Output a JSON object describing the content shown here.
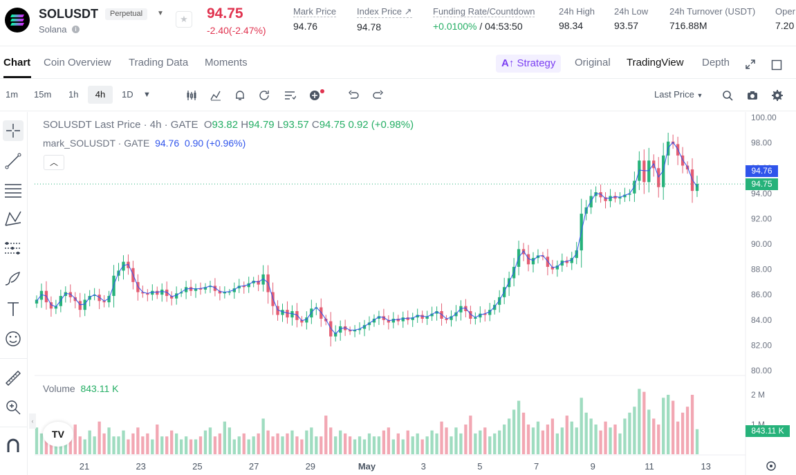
{
  "ticker": {
    "symbol": "SOLUSDT",
    "contract_type": "Perpetual",
    "coin_name": "Solana",
    "last_price": "94.75",
    "change": "-2.40(-2.47%)",
    "mark_price_label": "Mark Price",
    "mark_price": "94.76",
    "index_price_label": "Index Price ↗",
    "index_price": "94.78",
    "funding_label": "Funding Rate/Countdown",
    "funding_rate": "+0.0100%",
    "funding_countdown": "/ 04:53:50",
    "high_label": "24h High",
    "high": "98.34",
    "low_label": "24h Low",
    "low": "93.57",
    "turnover_label": "24h Turnover (USDT)",
    "turnover": "716.88M",
    "open_label": "Oper",
    "open_value": "7.20"
  },
  "tabs": [
    "Chart",
    "Coin Overview",
    "Trading Data",
    "Moments"
  ],
  "view_tabs": {
    "strategy": "Strategy",
    "original": "Original",
    "tradingview": "TradingView",
    "depth": "Depth"
  },
  "toolbar": {
    "timeframes": [
      "1m",
      "15m",
      "1h",
      "4h",
      "1D"
    ],
    "active_timeframe": "4h",
    "price_type": "Last Price"
  },
  "legend": {
    "title": "SOLUSDT Last Price · 4h · GATE",
    "open_label": "O",
    "open": "93.82",
    "high_label": "H",
    "high": "94.79",
    "low_label": "L",
    "low": "93.57",
    "close_label": "C",
    "close": "94.75",
    "change": "0.92 (+0.98%)",
    "mark_title": "mark_SOLUSDT · GATE",
    "mark_value": "94.76",
    "mark_change": "0.90 (+0.96%)"
  },
  "volume_legend": {
    "label": "Volume",
    "value": "843.11 K"
  },
  "colors": {
    "up": "#26b27a",
    "down": "#e35c72",
    "mark_tag": "#2f54eb",
    "brand_purple": "#7b3ff2"
  },
  "icons": [
    "close-icon",
    "star-icon",
    "expand-icon",
    "window-icon",
    "candles-icon",
    "indicator-icon",
    "alert-icon",
    "replay-icon",
    "template-icon",
    "add-icon",
    "undo-icon",
    "redo-icon",
    "search-icon",
    "camera-icon",
    "settings-icon",
    "crosshair-icon",
    "trendline-icon",
    "fib-icon",
    "pattern-icon",
    "forecast-icon",
    "brush-icon",
    "text-icon",
    "emoji-icon",
    "ruler-icon",
    "zoom-icon",
    "magnet-icon"
  ],
  "chart_data": {
    "type": "candlestick",
    "price_axis": [
      "100.00",
      "98.00",
      "96.00",
      "94.00",
      "92.00",
      "90.00",
      "88.00",
      "86.00",
      "84.00",
      "82.00",
      "80.00"
    ],
    "price_range": [
      80,
      100
    ],
    "volume_axis": [
      "2 M",
      "1 M"
    ],
    "x_labels": [
      "21",
      "23",
      "25",
      "27",
      "29",
      "May",
      "3",
      "5",
      "7",
      "9",
      "11",
      "13"
    ],
    "mark_price_tag": "94.76",
    "last_price_tag": "94.75",
    "volume_tag": "843.11 K",
    "close_series": [
      85.6,
      86.3,
      85.4,
      84.9,
      85.1,
      85.9,
      86.2,
      85.8,
      85.5,
      84.8,
      85.6,
      85.9,
      86.0,
      85.5,
      85.4,
      85.9,
      87.5,
      87.9,
      88.6,
      88.1,
      87.0,
      86.2,
      86.1,
      86.0,
      86.3,
      86.0,
      86.4,
      85.9,
      85.7,
      86.1,
      86.2,
      86.6,
      86.3,
      86.5,
      86.4,
      86.6,
      86.7,
      86.3,
      86.1,
      86.2,
      86.2,
      86.5,
      86.7,
      86.6,
      86.9,
      87.1,
      86.8,
      87.6,
      86.2,
      85.1,
      84.4,
      84.8,
      84.2,
      84.7,
      84.0,
      83.8,
      84.2,
      84.9,
      85.0,
      84.1,
      83.9,
      82.7,
      83.0,
      83.5,
      83.2,
      83.1,
      83.2,
      83.3,
      83.6,
      83.8,
      84.1,
      84.3,
      84.0,
      83.8,
      84.1,
      83.9,
      84.2,
      84.0,
      84.2,
      84.4,
      84.1,
      84.3,
      84.5,
      84.7,
      84.1,
      84.0,
      84.3,
      84.6,
      85.1,
      84.7,
      84.1,
      84.2,
      84.5,
      84.4,
      84.8,
      85.2,
      85.8,
      86.6,
      87.3,
      88.2,
      89.6,
      89.2,
      88.4,
      88.9,
      89.1,
      89.0,
      88.2,
      88.0,
      88.3,
      88.7,
      88.5,
      88.9,
      89.5,
      92.4,
      92.9,
      93.8,
      94.1,
      93.7,
      93.4,
      93.8,
      93.6,
      93.7,
      93.9,
      94.0,
      95.0,
      96.6,
      94.9,
      96.6,
      96.0,
      94.5,
      97.0,
      98.1,
      97.9,
      97.0,
      96.2,
      95.9,
      94.2,
      94.75
    ],
    "volume_series": [
      0.9,
      0.7,
      0.8,
      0.6,
      0.5,
      0.9,
      0.8,
      0.7,
      1.0,
      0.6,
      0.5,
      0.8,
      0.6,
      1.1,
      0.7,
      0.9,
      0.6,
      0.6,
      0.8,
      0.5,
      0.7,
      0.9,
      0.6,
      0.7,
      0.5,
      1.0,
      0.6,
      0.6,
      0.8,
      0.7,
      0.5,
      0.6,
      0.5,
      0.5,
      0.6,
      0.8,
      0.9,
      0.6,
      0.7,
      1.1,
      0.9,
      0.5,
      0.6,
      0.7,
      0.5,
      0.6,
      0.7,
      1.2,
      0.8,
      0.6,
      0.7,
      0.6,
      0.7,
      0.8,
      0.6,
      0.5,
      0.8,
      0.9,
      0.6,
      0.6,
      1.3,
      0.9,
      0.6,
      0.8,
      0.7,
      0.6,
      0.5,
      0.6,
      0.5,
      0.7,
      0.6,
      0.6,
      0.8,
      0.9,
      0.5,
      0.7,
      0.5,
      0.8,
      0.6,
      0.7,
      0.5,
      0.6,
      0.8,
      0.7,
      1.1,
      0.9,
      0.6,
      0.9,
      0.7,
      1.0,
      1.3,
      0.7,
      0.8,
      0.9,
      0.6,
      0.7,
      0.8,
      1.0,
      1.2,
      1.5,
      1.8,
      1.4,
      1.0,
      0.9,
      1.1,
      0.8,
      1.0,
      1.2,
      0.7,
      0.9,
      1.3,
      1.1,
      0.9,
      1.9,
      1.4,
      1.2,
      1.0,
      0.8,
      1.1,
      0.9,
      1.0,
      0.7,
      1.2,
      1.4,
      1.6,
      2.2,
      2.1,
      1.5,
      1.2,
      1.0,
      1.9,
      2.0,
      1.8,
      1.1,
      1.4,
      1.6,
      2.0,
      0.843
    ],
    "up_color": "#26b27a",
    "down_color": "#e35c72"
  }
}
